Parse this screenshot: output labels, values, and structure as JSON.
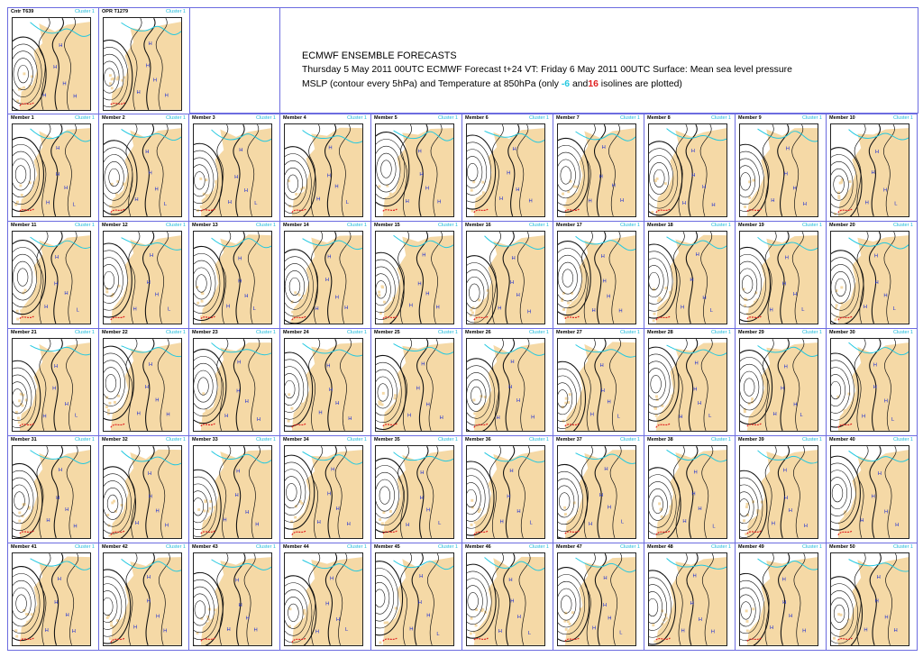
{
  "title": {
    "line1": "ECMWF ENSEMBLE FORECASTS",
    "line2": "Thursday 5 May 2011 00UTC ECMWF  Forecast t+24 VT: Friday 6 May 2011 00UTC Surface: Mean sea level pressure",
    "line3_pre": "MSLP (contour every 5hPa)   and Temperature at 850hPa (only  ",
    "iso_cold": "-6",
    "line3_mid": " and",
    "iso_warm": "16",
    "line3_post": " isolines are plotted)"
  },
  "colors": {
    "border": "#6c6ce0",
    "cluster_text": "#1ab8d8",
    "land": "#f5d9a6",
    "cold_isoline": "#22c8e0",
    "warm_isoline": "#e02020",
    "contour": "#111111",
    "pressure_letter": "#1a2bd0"
  },
  "cluster_label": "Cluster 1",
  "top_panels": [
    {
      "label": "Cntr T639"
    },
    {
      "label": "OPR T1279"
    }
  ],
  "members": [
    "Member 1",
    "Member 2",
    "Member 3",
    "Member 4",
    "Member 5",
    "Member 6",
    "Member 7",
    "Member 8",
    "Member 9",
    "Member 10",
    "Member 11",
    "Member 12",
    "Member 13",
    "Member 14",
    "Member 15",
    "Member 16",
    "Member 17",
    "Member 18",
    "Member 19",
    "Member 20",
    "Member 21",
    "Member 22",
    "Member 23",
    "Member 24",
    "Member 25",
    "Member 26",
    "Member 27",
    "Member 28",
    "Member 29",
    "Member 30",
    "Member 31",
    "Member 32",
    "Member 33",
    "Member 34",
    "Member 35",
    "Member 36",
    "Member 37",
    "Member 38",
    "Member 39",
    "Member 40",
    "Member 41",
    "Member 42",
    "Member 43",
    "Member 44",
    "Member 45",
    "Member 46",
    "Member 47",
    "Member 48",
    "Member 49",
    "Member 50"
  ],
  "pressure_letters": [
    "H",
    "L"
  ]
}
